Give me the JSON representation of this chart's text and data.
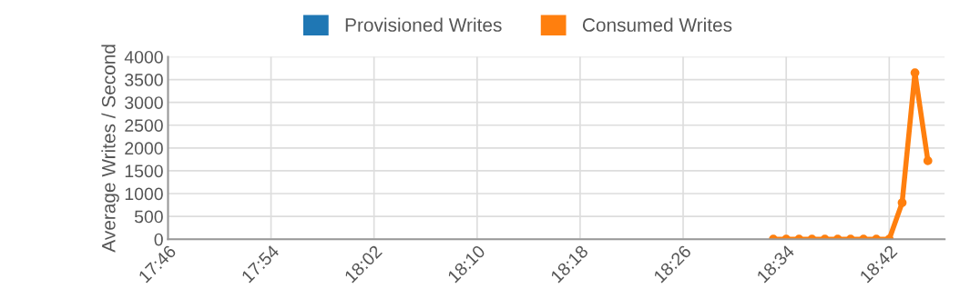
{
  "chart_data": {
    "type": "line",
    "ylabel": "Average Writes / Second",
    "x": [
      18.55,
      18.5667,
      18.5833,
      18.6,
      18.6167,
      18.6333,
      18.65,
      18.6667,
      18.6833,
      18.7,
      18.7167,
      18.7333,
      18.75
    ],
    "series": [
      {
        "name": "Provisioned Writes",
        "color": "#1f77b4",
        "values": [
          null,
          null,
          null,
          null,
          null,
          null,
          null,
          null,
          null,
          null,
          null,
          null,
          null
        ]
      },
      {
        "name": "Consumed Writes",
        "color": "#ff7f0e",
        "values": [
          0,
          0,
          0,
          0,
          0,
          0,
          0,
          0,
          0,
          0,
          800,
          3650,
          1720
        ]
      }
    ],
    "xlim": [
      17.7667,
      18.7717
    ],
    "xticks": [
      {
        "value": 17.7667,
        "label": "17:46"
      },
      {
        "value": 17.9,
        "label": "17:54"
      },
      {
        "value": 18.0333,
        "label": "18:02"
      },
      {
        "value": 18.1667,
        "label": "18:10"
      },
      {
        "value": 18.3,
        "label": "18:18"
      },
      {
        "value": 18.4333,
        "label": "18:26"
      },
      {
        "value": 18.5667,
        "label": "18:34"
      },
      {
        "value": 18.7,
        "label": "18:42"
      }
    ],
    "ylim": [
      0,
      4000
    ],
    "yticks": [
      0,
      500,
      1000,
      1500,
      2000,
      2500,
      3000,
      3500,
      4000
    ],
    "grid": true,
    "legend": "top",
    "marker": "circle",
    "line_style": "solid"
  }
}
